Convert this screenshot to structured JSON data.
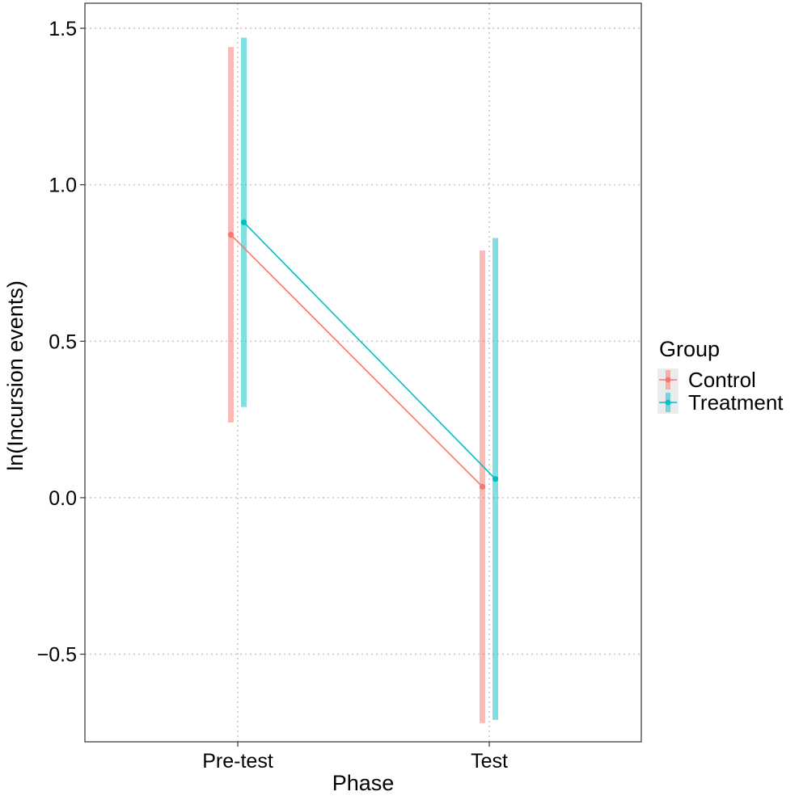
{
  "chart_data": {
    "type": "line",
    "title": "",
    "xlabel": "Phase",
    "ylabel": "ln(Incursion events)",
    "categories": [
      "Pre-test",
      "Test"
    ],
    "ylim": [
      -0.78,
      1.58
    ],
    "yticks": [
      -0.5,
      0.0,
      0.5,
      1.0,
      1.5
    ],
    "ytick_labels": [
      "−0.5",
      "0.0",
      "0.5",
      "1.0",
      "1.5"
    ],
    "grid": true,
    "error_bars": true,
    "legend": {
      "title": "Group",
      "position": "right"
    },
    "series": [
      {
        "name": "Control",
        "color": "#F8766D",
        "values": [
          0.84,
          0.035
        ],
        "lower": [
          0.24,
          -0.72
        ],
        "upper": [
          1.44,
          0.79
        ]
      },
      {
        "name": "Treatment",
        "color": "#00BFC4",
        "values": [
          0.88,
          0.06
        ],
        "lower": [
          0.29,
          -0.71
        ],
        "upper": [
          1.47,
          0.83
        ]
      }
    ]
  }
}
